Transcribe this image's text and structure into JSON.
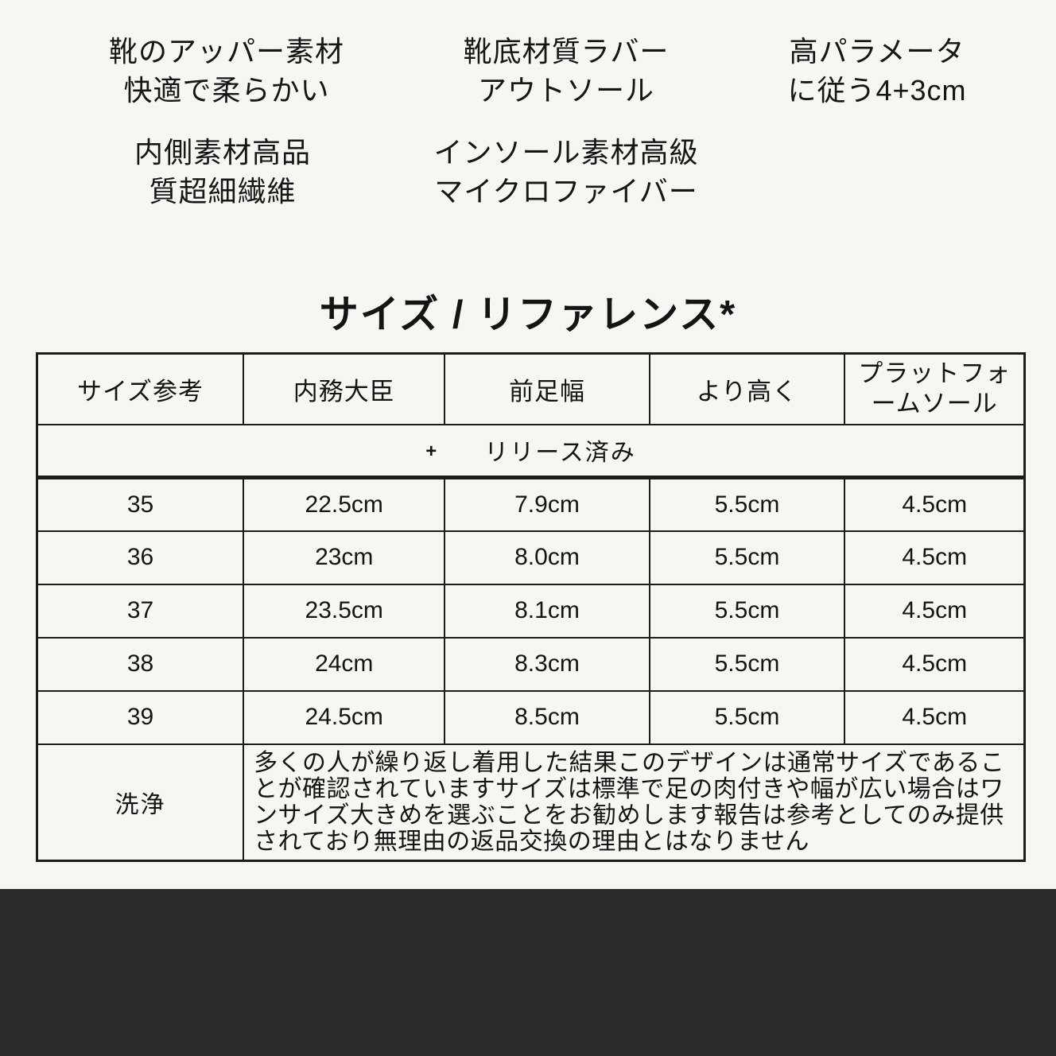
{
  "theme": {
    "background": "#f7f6f2",
    "ink": "#141414",
    "table_line": "#1c1c1c",
    "footer_band": "#2a292c"
  },
  "specs": {
    "upper": {
      "line1": "靴のアッパー素材",
      "line2": "快適で柔らかい"
    },
    "outsole": {
      "line1": "靴底材質ラバー",
      "line2": "アウトソール"
    },
    "height_param": {
      "line1": "高パラメータ",
      "line2": "に従う4+3cm"
    },
    "lining": {
      "line1": "内側素材高品",
      "line2": "質超細繊維"
    },
    "insole": {
      "line1": "インソール素材高級",
      "line2": "マイクロファイバー"
    }
  },
  "size_section": {
    "title": "サイズ / リファレンス*",
    "table": {
      "banner_plus": "+",
      "banner_label": "リリース済み",
      "columns": [
        "サイズ参考",
        "内務大臣",
        "前足幅",
        "より高く",
        "プラットフォームソール"
      ],
      "rows": [
        [
          "35",
          "22.5cm",
          "7.9cm",
          "5.5cm",
          "4.5cm"
        ],
        [
          "36",
          "23cm",
          "8.0cm",
          "5.5cm",
          "4.5cm"
        ],
        [
          "37",
          "23.5cm",
          "8.1cm",
          "5.5cm",
          "4.5cm"
        ],
        [
          "38",
          "24cm",
          "8.3cm",
          "5.5cm",
          "4.5cm"
        ],
        [
          "39",
          "24.5cm",
          "8.5cm",
          "5.5cm",
          "4.5cm"
        ]
      ],
      "wash_label": "洗浄",
      "wash_note": "多くの人が繰り返し着用した結果このデザインは通常サイズであることが確認されていますサイズは標準で足の肉付きや幅が広い場合はワンサイズ大きめを選ぶことをお勧めします報告は参考としてのみ提供されており無理由の返品交換の理由とはなりません"
    }
  }
}
